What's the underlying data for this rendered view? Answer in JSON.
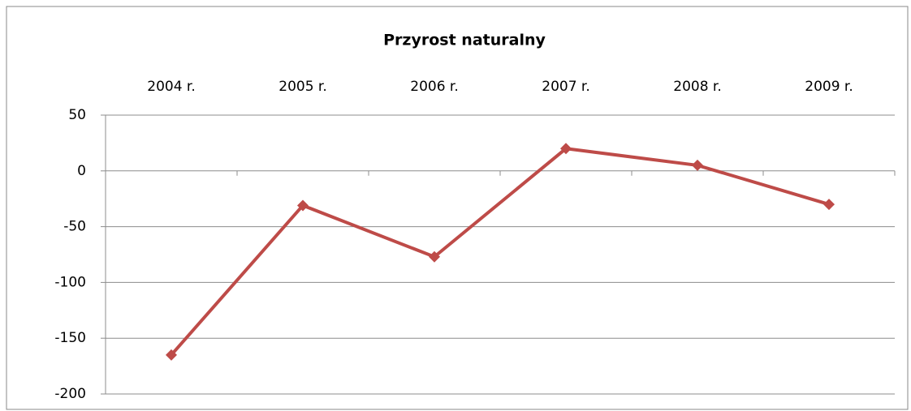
{
  "chart_data": {
    "type": "line",
    "title": "Przyrost naturalny",
    "categories": [
      "2004 r.",
      "2005 r.",
      "2006 r.",
      "2007 r.",
      "2008 r.",
      "2009 r."
    ],
    "series": [
      {
        "name": "Przyrost naturalny",
        "color": "#be4b48",
        "values": [
          -165,
          -31,
          -77,
          20,
          5,
          -30
        ]
      }
    ],
    "ylim": [
      -200,
      50
    ],
    "yticks": [
      -200,
      -150,
      -100,
      -50,
      0,
      50
    ],
    "grid": true
  }
}
